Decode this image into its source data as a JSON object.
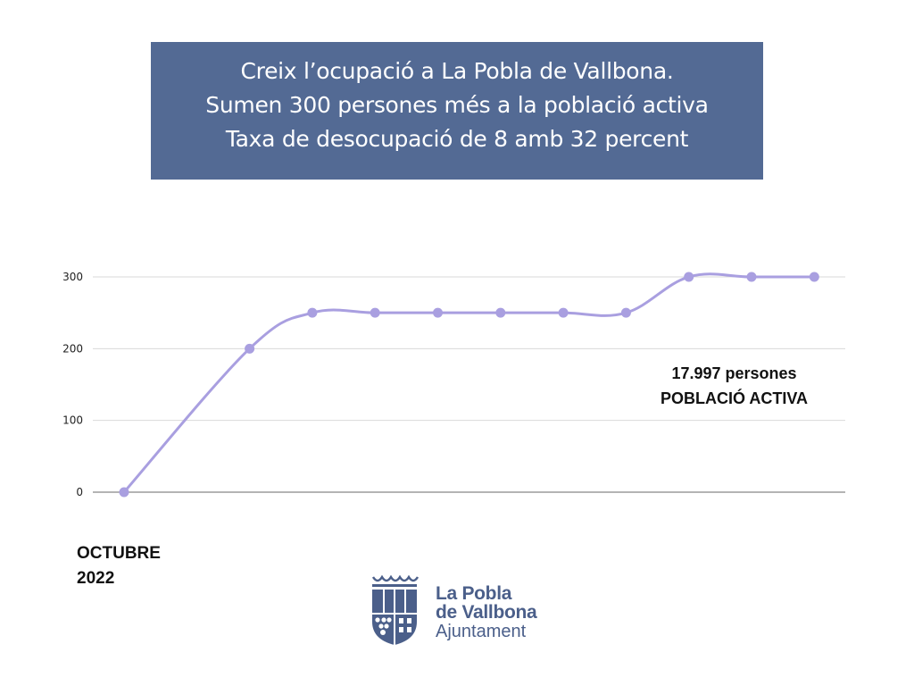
{
  "header": {
    "lines": [
      "Creix l’ocupació a La Pobla de Vallbona.",
      "Sumen 300 persones més a la població activa",
      "Taxa de desocupació de 8 amb 32 percent"
    ],
    "background": "#536a94"
  },
  "annotation": {
    "line1": "17.997 persones",
    "line2": "POBLACIÓ ACTIVA"
  },
  "date_label": {
    "month": "OCTUBRE",
    "year": "2022"
  },
  "logo": {
    "icon": "coat-of-arms-icon",
    "line1": "La Pobla",
    "line2": "de Vallbona",
    "line3": "Ajuntament",
    "color": "#4b5f8a"
  },
  "chart_data": {
    "type": "line",
    "title": "Creix l’ocupació a La Pobla de Vallbona. Sumen 300 persones més a la població activa",
    "xlabel": "",
    "ylabel": "",
    "x_positions": [
      0,
      2,
      3,
      4,
      5,
      6,
      7,
      8,
      9,
      10,
      11
    ],
    "values": [
      0,
      200,
      250,
      250,
      250,
      250,
      250,
      250,
      300,
      300,
      300
    ],
    "yticks": [
      0,
      100,
      200,
      300
    ],
    "ylim": [
      0,
      300
    ],
    "grid": true,
    "smooth": true,
    "line_color": "#a99fe0",
    "legend": null,
    "annotations": [
      "17.997 persones",
      "POBLACIÓ ACTIVA"
    ]
  }
}
